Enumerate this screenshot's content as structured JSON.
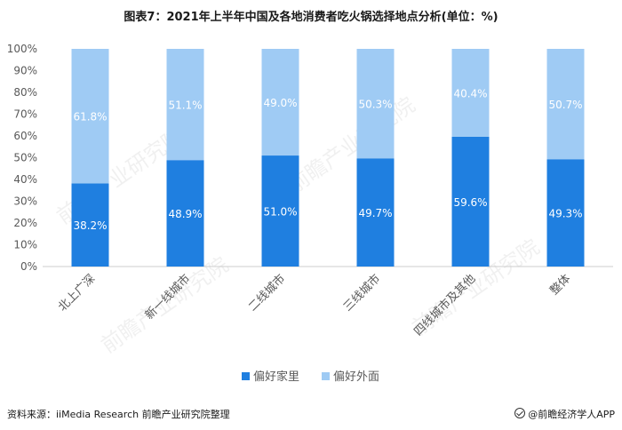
{
  "title": "图表7：2021年上半年中国及各地消费者吃火锅选择地点分析(单位：%)",
  "source": "资料来源：iiMedia Research 前瞻产业研究院整理",
  "brand": "@前瞻经济学人APP",
  "watermark": "前瞻产业研究院",
  "colors": {
    "home": "#1f7fe0",
    "outside": "#9fcbf4",
    "axis": "#cccccc",
    "text": "#595959"
  },
  "chart_data": {
    "type": "bar",
    "stacked": true,
    "categories": [
      "北上广深",
      "新一线城市",
      "二线城市",
      "三线城市",
      "四线城市及其他",
      "整体"
    ],
    "series": [
      {
        "name": "偏好家里",
        "values": [
          38.2,
          48.9,
          51.0,
          49.7,
          59.6,
          49.3
        ],
        "labels": [
          "38.2%",
          "48.9%",
          "51.0%",
          "49.7%",
          "59.6%",
          "49.3%"
        ]
      },
      {
        "name": "偏好外面",
        "values": [
          61.8,
          51.1,
          49.0,
          50.3,
          40.4,
          50.7
        ],
        "labels": [
          "61.8%",
          "51.1%",
          "49.0%",
          "50.3%",
          "40.4%",
          "50.7%"
        ]
      }
    ],
    "yticks": [
      "0%",
      "10%",
      "20%",
      "30%",
      "40%",
      "50%",
      "60%",
      "70%",
      "80%",
      "90%",
      "100%"
    ],
    "ylim": [
      0,
      100
    ],
    "legend_position": "bottom"
  }
}
